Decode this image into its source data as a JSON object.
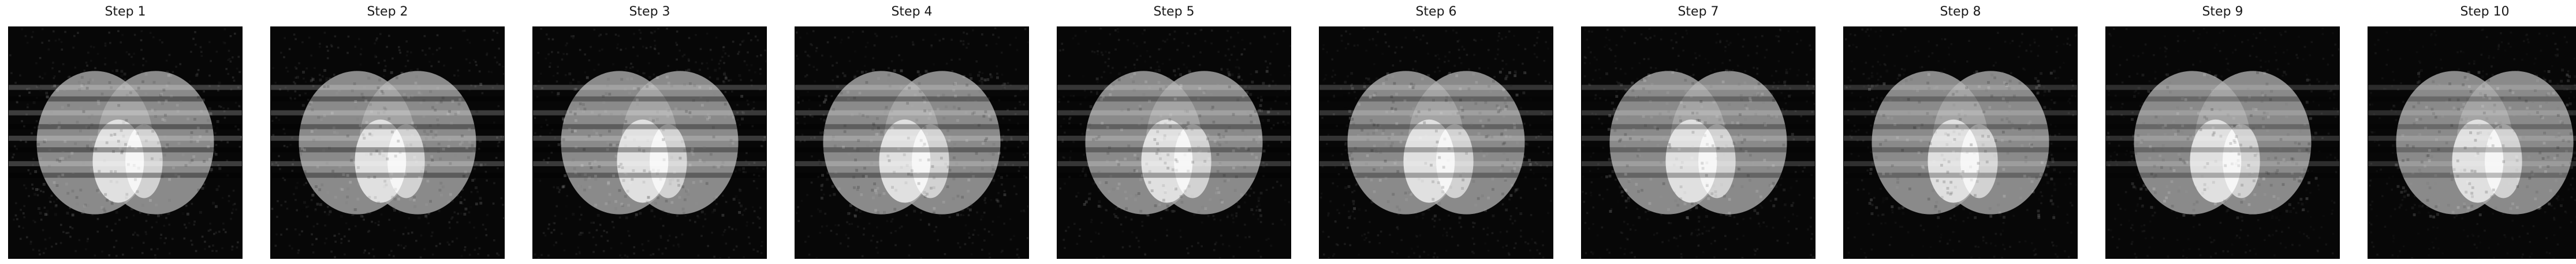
{
  "figure": {
    "panels": [
      {
        "title": "Step 1"
      },
      {
        "title": "Step 2"
      },
      {
        "title": "Step 3"
      },
      {
        "title": "Step 4"
      },
      {
        "title": "Step 5"
      },
      {
        "title": "Step 6"
      },
      {
        "title": "Step 7"
      },
      {
        "title": "Step 8"
      },
      {
        "title": "Step 9"
      },
      {
        "title": "Step 10"
      }
    ],
    "colormap": "gray",
    "colors": {
      "background": "#070707",
      "large_ellipses": "#8a8a8a",
      "overlap": "#a4a4a4",
      "bright_ellipses": "#e0e0e0",
      "bright_overlap": "#f6f6f6"
    }
  }
}
